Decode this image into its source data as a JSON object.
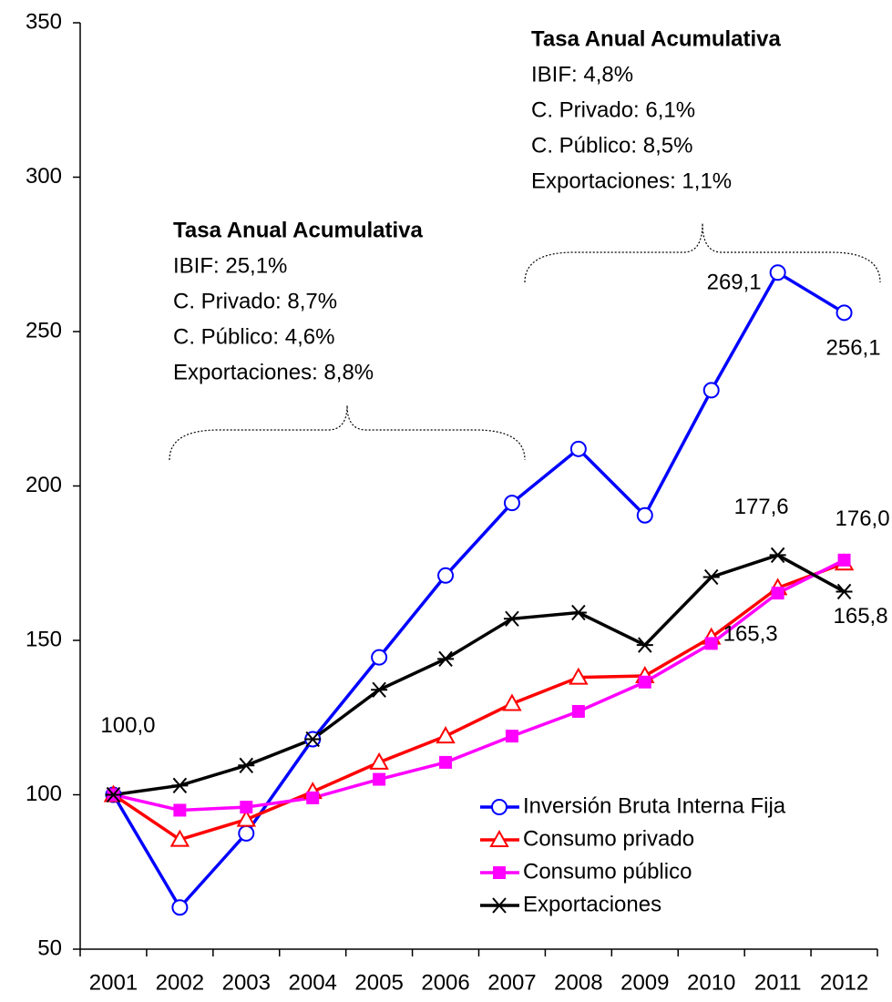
{
  "chart_data": {
    "type": "line",
    "categories": [
      "2001",
      "2002",
      "2003",
      "2004",
      "2005",
      "2006",
      "2007",
      "2008",
      "2009",
      "2010",
      "2011",
      "2012"
    ],
    "ylim": [
      50,
      350
    ],
    "yticks": [
      50,
      100,
      150,
      200,
      250,
      300,
      350
    ],
    "legend": "lower right",
    "series": [
      {
        "name": "Inversión Bruta Interna Fija",
        "color": "#0000ff",
        "marker": "circle",
        "values": [
          100,
          63.5,
          87.5,
          118,
          144.5,
          171,
          194.5,
          212,
          190.5,
          231,
          269.1,
          256.1
        ],
        "value_labels": [
          "100,0",
          null,
          null,
          null,
          null,
          null,
          null,
          null,
          null,
          null,
          "269,1",
          "256,1"
        ]
      },
      {
        "name": "Consumo privado",
        "color": "#ff0000",
        "marker": "triangle",
        "values": [
          100,
          85.5,
          92,
          101,
          110.5,
          119,
          129.5,
          138,
          138.5,
          151,
          167,
          175
        ]
      },
      {
        "name": "Consumo público",
        "color": "#ff00ff",
        "marker": "square",
        "values": [
          100,
          95,
          96,
          99,
          105,
          110.5,
          119,
          127,
          136.5,
          149,
          165.3,
          176.0
        ],
        "value_labels": [
          null,
          null,
          null,
          null,
          null,
          null,
          null,
          null,
          null,
          null,
          "165,3",
          "176,0"
        ]
      },
      {
        "name": "Exportaciones",
        "color": "#000000",
        "marker": "asterisk",
        "values": [
          100,
          103,
          109.5,
          118,
          134,
          144,
          157,
          159,
          148.5,
          170.5,
          177.6,
          165.8
        ],
        "value_labels": [
          null,
          null,
          null,
          null,
          null,
          null,
          null,
          null,
          null,
          null,
          "177,6",
          "165,8"
        ]
      }
    ],
    "annotations": [
      {
        "title": "Tasa Anual Acumulativa",
        "lines": [
          "IBIF: 25,1%",
          "C. Privado: 8,7%",
          "C. Público: 4,6%",
          "Exportaciones: 8,8%"
        ]
      },
      {
        "title": "Tasa Anual Acumulativa",
        "lines": [
          "IBIF: 4,8%",
          "C. Privado: 6,1%",
          "C. Público: 8,5%",
          "Exportaciones: 1,1%"
        ]
      }
    ]
  }
}
